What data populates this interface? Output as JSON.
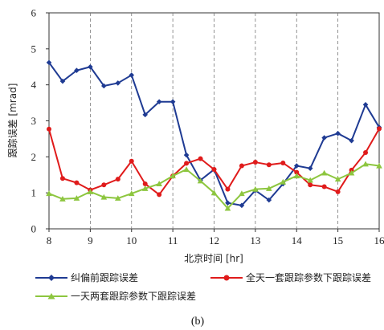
{
  "chart_data": {
    "type": "line",
    "title": "",
    "caption": "(b)",
    "xlabel": "北京时间 [hr]",
    "ylabel": "跟踪误差 [mrad]",
    "xlim": [
      8,
      16
    ],
    "ylim": [
      0,
      6
    ],
    "xticks": [
      8,
      9,
      10,
      11,
      12,
      13,
      14,
      15,
      16
    ],
    "yticks": [
      0,
      1,
      2,
      3,
      4,
      5,
      6
    ],
    "grid": "vertical-dashed",
    "legend": "bottom",
    "series": [
      {
        "name": "纠偏前跟踪误差",
        "color": "#1f3b93",
        "marker": "diamond",
        "x": [
          8.0,
          8.33,
          8.67,
          9.0,
          9.33,
          9.67,
          10.0,
          10.33,
          10.67,
          11.0,
          11.33,
          11.67,
          12.0,
          12.33,
          12.67,
          13.0,
          13.33,
          13.67,
          14.0,
          14.33,
          14.67,
          15.0,
          15.33,
          15.67,
          16.0
        ],
        "y": [
          4.62,
          4.1,
          4.4,
          4.5,
          3.97,
          4.05,
          4.27,
          3.17,
          3.53,
          3.53,
          2.05,
          1.35,
          1.65,
          0.72,
          0.65,
          1.07,
          0.8,
          1.25,
          1.75,
          1.68,
          2.53,
          2.65,
          2.45,
          3.45,
          2.82
        ]
      },
      {
        "name": "全天一套跟踪参数下跟踪误差",
        "color": "#e01b1b",
        "marker": "circle",
        "x": [
          8.0,
          8.33,
          8.67,
          9.0,
          9.33,
          9.67,
          10.0,
          10.33,
          10.67,
          11.0,
          11.33,
          11.67,
          12.0,
          12.33,
          12.67,
          13.0,
          13.33,
          13.67,
          14.0,
          14.33,
          14.67,
          15.0,
          15.33,
          15.67,
          16.0
        ],
        "y": [
          2.77,
          1.4,
          1.28,
          1.08,
          1.22,
          1.38,
          1.88,
          1.25,
          0.95,
          1.47,
          1.82,
          1.95,
          1.65,
          1.1,
          1.75,
          1.85,
          1.78,
          1.83,
          1.57,
          1.22,
          1.17,
          1.03,
          1.63,
          2.12,
          2.78
        ]
      },
      {
        "name": "一天两套跟踪参数下跟踪误差",
        "color": "#8dc63f",
        "marker": "triangle",
        "x": [
          8.0,
          8.33,
          8.67,
          9.0,
          9.33,
          9.67,
          10.0,
          10.33,
          10.67,
          11.0,
          11.33,
          11.67,
          12.0,
          12.33,
          12.67,
          13.0,
          13.33,
          13.67,
          14.0,
          14.33,
          14.67,
          15.0,
          15.33,
          15.67,
          16.0
        ],
        "y": [
          0.98,
          0.83,
          0.85,
          1.03,
          0.88,
          0.85,
          0.98,
          1.12,
          1.25,
          1.47,
          1.65,
          1.33,
          1.0,
          0.57,
          0.98,
          1.1,
          1.12,
          1.3,
          1.47,
          1.35,
          1.55,
          1.38,
          1.55,
          1.8,
          1.75
        ]
      }
    ]
  }
}
